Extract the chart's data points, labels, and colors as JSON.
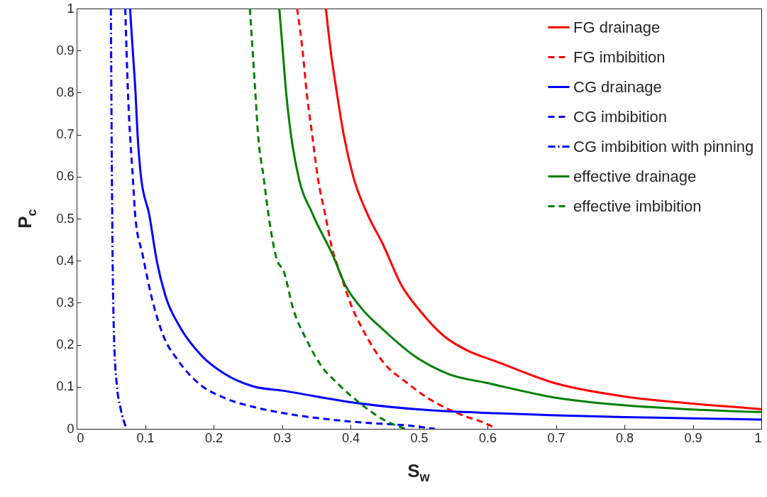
{
  "chart_data": {
    "type": "line",
    "xlabel": "S$_{w}$",
    "ylabel": "P$_{c}$",
    "xlim": [
      0,
      1
    ],
    "ylim": [
      0,
      1
    ],
    "xticks": [
      0,
      0.1,
      0.2,
      0.3,
      0.4,
      0.5,
      0.6,
      0.7,
      0.8,
      0.9,
      1
    ],
    "yticks": [
      0,
      0.1,
      0.2,
      0.3,
      0.4,
      0.5,
      0.6,
      0.7,
      0.8,
      0.9,
      1
    ],
    "grid": false,
    "legend": "top right",
    "marker": "none",
    "series": [
      {
        "name": "FG drainage",
        "color": "#ff0000",
        "line_style": "solid",
        "x": [
          0.364,
          0.371,
          0.38,
          0.39,
          0.404,
          0.425,
          0.447,
          0.475,
          0.502,
          0.537,
          0.571,
          0.61,
          0.7,
          0.8,
          0.9,
          1
        ],
        "values": [
          1,
          0.9,
          0.8,
          0.7,
          0.6,
          0.51,
          0.44,
          0.34,
          0.28,
          0.22,
          0.186,
          0.162,
          0.108,
          0.077,
          0.06,
          0.047
        ]
      },
      {
        "name": "FG imbibition",
        "color": "#ff0000",
        "line_style": "dashed",
        "x": [
          0.322,
          0.33,
          0.336,
          0.344,
          0.352,
          0.363,
          0.373,
          0.385,
          0.402,
          0.42,
          0.447,
          0.482,
          0.516,
          0.561,
          0.606,
          0.612
        ],
        "values": [
          1,
          0.9,
          0.8,
          0.7,
          0.6,
          0.51,
          0.43,
          0.37,
          0.29,
          0.23,
          0.16,
          0.11,
          0.07,
          0.034,
          0.006,
          0
        ]
      },
      {
        "name": "CG drainage",
        "color": "#0000ff",
        "line_style": "solid",
        "x": [
          0.078,
          0.082,
          0.086,
          0.089,
          0.094,
          0.106,
          0.117,
          0.13,
          0.151,
          0.182,
          0.217,
          0.258,
          0.3,
          0.406,
          0.509,
          0.613,
          0.7,
          0.8,
          0.9,
          1
        ],
        "values": [
          1,
          0.9,
          0.8,
          0.7,
          0.6,
          0.51,
          0.4,
          0.315,
          0.242,
          0.175,
          0.13,
          0.101,
          0.091,
          0.062,
          0.045,
          0.037,
          0.032,
          0.028,
          0.025,
          0.022
        ]
      },
      {
        "name": "CG imbibition",
        "color": "#0000ff",
        "line_style": "dashed",
        "x": [
          0.071,
          0.075,
          0.082,
          0.086,
          0.096,
          0.11,
          0.127,
          0.148,
          0.179,
          0.217,
          0.261,
          0.3,
          0.402,
          0.495,
          0.523
        ],
        "values": [
          1,
          0.8,
          0.6,
          0.5,
          0.417,
          0.31,
          0.22,
          0.163,
          0.107,
          0.073,
          0.051,
          0.038,
          0.017,
          0.006,
          0
        ]
      },
      {
        "name": "CG imbibition with pinning",
        "color": "#0000ff",
        "line_style": "dashdot",
        "x": [
          0.05,
          0.052,
          0.055,
          0.059,
          0.064,
          0.073
        ],
        "values": [
          1,
          0.5,
          0.2,
          0.1,
          0.05,
          0
        ]
      },
      {
        "name": "effective drainage",
        "color": "#008000",
        "line_style": "solid",
        "x": [
          0.296,
          0.301,
          0.306,
          0.313,
          0.324,
          0.345,
          0.375,
          0.392,
          0.416,
          0.451,
          0.492,
          0.544,
          0.6,
          0.7,
          0.8,
          0.9,
          1
        ],
        "values": [
          1,
          0.9,
          0.8,
          0.7,
          0.6,
          0.51,
          0.41,
          0.343,
          0.287,
          0.231,
          0.175,
          0.13,
          0.109,
          0.074,
          0.056,
          0.046,
          0.04
        ]
      },
      {
        "name": "effective imbibition",
        "color": "#008000",
        "line_style": "dashed",
        "x": [
          0.253,
          0.257,
          0.261,
          0.265,
          0.273,
          0.281,
          0.293,
          0.302,
          0.316,
          0.337,
          0.359,
          0.378,
          0.413,
          0.447,
          0.48
        ],
        "values": [
          1,
          0.9,
          0.8,
          0.7,
          0.6,
          0.5,
          0.4,
          0.377,
          0.287,
          0.208,
          0.146,
          0.113,
          0.062,
          0.023,
          0
        ]
      }
    ]
  }
}
